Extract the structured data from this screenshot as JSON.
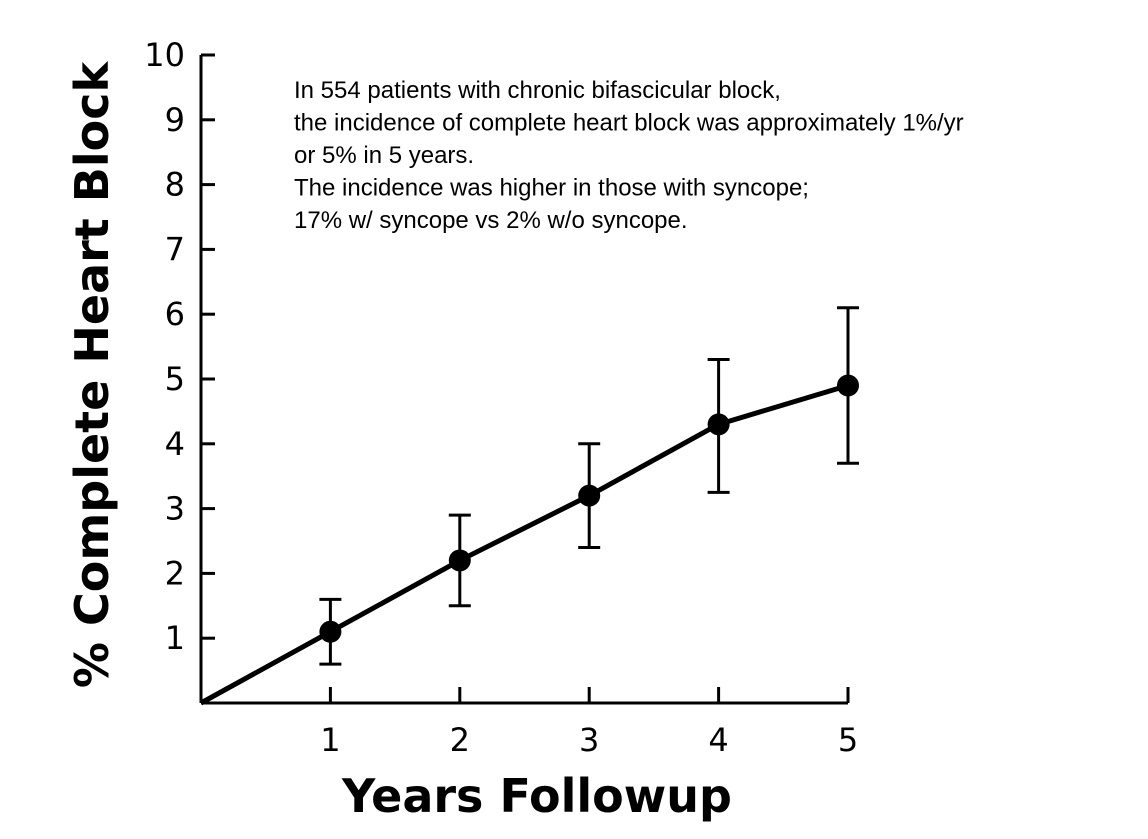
{
  "chart_data": {
    "type": "line",
    "xlabel": "Years Followup",
    "ylabel": "% Complete Heart Block",
    "xlim": [
      0,
      5
    ],
    "ylim": [
      0,
      10
    ],
    "x_ticks": [
      "1",
      "2",
      "3",
      "4",
      "5"
    ],
    "y_ticks": [
      "1",
      "2",
      "3",
      "4",
      "5",
      "6",
      "7",
      "8",
      "9",
      "10"
    ],
    "line_starts_at_origin": true,
    "series": [
      {
        "x": [
          1,
          2,
          3,
          4,
          5
        ],
        "y": [
          1.1,
          2.2,
          3.2,
          4.3,
          4.9
        ],
        "error_low": [
          0.6,
          1.5,
          2.4,
          3.25,
          3.7
        ],
        "error_high": [
          1.6,
          2.9,
          4.0,
          5.3,
          6.1
        ]
      }
    ],
    "grid": false,
    "color": "#000000",
    "annotation": [
      "In 554 patients with chronic bifascicular block,",
      "the incidence of complete heart block was approximately 1%/yr",
      "or 5% in 5 years.",
      "The incidence was higher in those with syncope;",
      "17%  w/ syncope vs 2% w/o syncope."
    ]
  }
}
